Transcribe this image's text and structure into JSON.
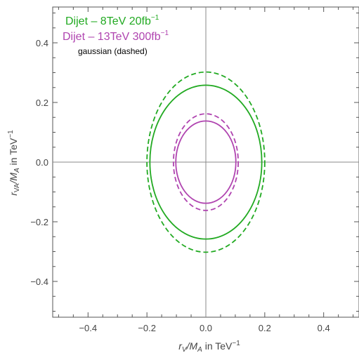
{
  "chart_data": {
    "type": "line",
    "xlabel": {
      "main": "r",
      "sub": "V",
      "mid": "/M",
      "sub2": "A",
      "tail": " in TeV",
      "sup": "−1"
    },
    "ylabel": {
      "main": "r",
      "sub": "VA",
      "mid": "/M",
      "sub2": "A",
      "tail": " in TeV",
      "sup": "−1"
    },
    "xlim": [
      -0.52,
      0.52
    ],
    "ylim": [
      -0.52,
      0.52
    ],
    "xticks": [
      -0.4,
      -0.2,
      0.0,
      0.2,
      0.4
    ],
    "yticks": [
      -0.4,
      -0.2,
      0.0,
      0.2,
      0.4
    ],
    "xtick_labels": [
      "−0.4",
      "−0.2",
      "0.0",
      "0.2",
      "0.4"
    ],
    "ytick_labels": [
      "−0.4",
      "−0.2",
      "0.0",
      "0.2",
      "0.4"
    ],
    "grid": false,
    "legend_position": "top-left",
    "legend": [
      {
        "text": "Dijet – 8TeV 20fb",
        "sup": "−1",
        "color": "#22aa22"
      },
      {
        "text": "Dijet – 13TeV 300fb",
        "sup": "−1",
        "color": "#b044b0"
      },
      {
        "text": "gaussian (dashed)",
        "sup": "",
        "color": "#000000"
      }
    ],
    "series": [
      {
        "shape": "ellipse",
        "cx": 0.0,
        "cy": 0.0,
        "rx": 0.19,
        "ry": 0.258,
        "color": "#22aa22",
        "dashed": false
      },
      {
        "shape": "ellipse",
        "cx": 0.0,
        "cy": 0.0,
        "rx": 0.2,
        "ry": 0.302,
        "color": "#22aa22",
        "dashed": true
      },
      {
        "shape": "ellipse",
        "cx": 0.0,
        "cy": 0.0,
        "rx": 0.102,
        "ry": 0.138,
        "color": "#b044b0",
        "dashed": false
      },
      {
        "shape": "ellipse",
        "cx": 0.0,
        "cy": 0.0,
        "rx": 0.11,
        "ry": 0.162,
        "color": "#b044b0",
        "dashed": true
      }
    ]
  }
}
